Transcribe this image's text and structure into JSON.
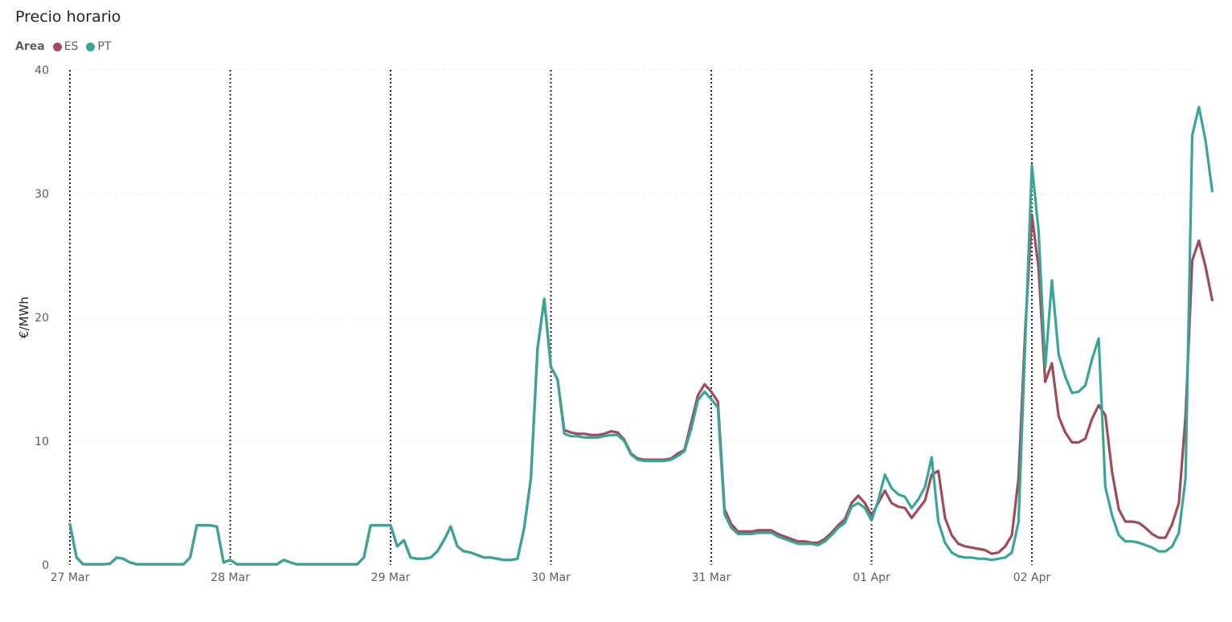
{
  "chart_data": {
    "type": "line",
    "title": "Precio horario",
    "legend_title": "Area",
    "legend_position": "top-left",
    "ylabel": "€/MWh",
    "xlabel": "",
    "ylim": [
      0,
      40
    ],
    "y_ticks": [
      "0",
      "10",
      "20",
      "30",
      "40"
    ],
    "x_ticks": [
      "27 Mar",
      "28 Mar",
      "29 Mar",
      "30 Mar",
      "31 Mar",
      "01 Apr",
      "02 Apr"
    ],
    "x_unit": "hour index from 27 Mar 00:00",
    "grid": true,
    "series": [
      {
        "name": "ES",
        "color": "#a04a5a",
        "values": [
          3.3,
          0.6,
          0.05,
          0.05,
          0.05,
          0.05,
          0.1,
          0.6,
          0.5,
          0.2,
          0.05,
          0.05,
          0.05,
          0.05,
          0.05,
          0.05,
          0.05,
          0.05,
          0.6,
          3.2,
          3.2,
          3.2,
          3.1,
          0.2,
          0.4,
          0.05,
          0.05,
          0.05,
          0.05,
          0.05,
          0.05,
          0.05,
          0.4,
          0.2,
          0.05,
          0.05,
          0.05,
          0.05,
          0.05,
          0.05,
          0.05,
          0.05,
          0.05,
          0.05,
          0.6,
          3.2,
          3.2,
          3.2,
          3.2,
          1.5,
          2.0,
          0.6,
          0.5,
          0.5,
          0.6,
          1.1,
          2.0,
          3.1,
          1.5,
          1.1,
          1.0,
          0.8,
          0.6,
          0.6,
          0.5,
          0.4,
          0.4,
          0.5,
          3.0,
          7.0,
          17.5,
          21.5,
          16.0,
          15.0,
          10.9,
          10.7,
          10.6,
          10.6,
          10.5,
          10.5,
          10.6,
          10.8,
          10.7,
          10.1,
          9.0,
          8.6,
          8.5,
          8.5,
          8.5,
          8.5,
          8.6,
          9.0,
          9.3,
          11.5,
          13.7,
          14.6,
          14.0,
          13.2,
          4.5,
          3.3,
          2.7,
          2.7,
          2.7,
          2.8,
          2.8,
          2.8,
          2.5,
          2.3,
          2.1,
          1.9,
          1.9,
          1.8,
          1.8,
          2.1,
          2.6,
          3.2,
          3.7,
          5.0,
          5.6,
          5.0,
          4.0,
          5.0,
          6.0,
          5.0,
          4.7,
          4.6,
          3.8,
          4.5,
          5.2,
          7.3,
          7.6,
          3.8,
          2.4,
          1.7,
          1.5,
          1.4,
          1.3,
          1.2,
          0.9,
          1.0,
          1.5,
          2.4,
          7.0,
          19.0,
          28.3,
          24.0,
          14.8,
          16.3,
          12.0,
          10.7,
          9.9,
          9.9,
          10.2,
          11.8,
          12.9,
          12.1,
          7.5,
          4.5,
          3.5,
          3.5,
          3.4,
          3.0,
          2.5,
          2.2,
          2.2,
          3.3,
          5.0,
          12.0,
          24.6,
          26.2,
          24.1,
          21.4
        ]
      },
      {
        "name": "PT",
        "color": "#3aa597",
        "values": [
          3.3,
          0.6,
          0.05,
          0.05,
          0.05,
          0.05,
          0.1,
          0.6,
          0.5,
          0.2,
          0.05,
          0.05,
          0.05,
          0.05,
          0.05,
          0.05,
          0.05,
          0.05,
          0.6,
          3.2,
          3.2,
          3.2,
          3.1,
          0.2,
          0.4,
          0.05,
          0.05,
          0.05,
          0.05,
          0.05,
          0.05,
          0.05,
          0.4,
          0.2,
          0.05,
          0.05,
          0.05,
          0.05,
          0.05,
          0.05,
          0.05,
          0.05,
          0.05,
          0.05,
          0.6,
          3.2,
          3.2,
          3.2,
          3.2,
          1.5,
          2.0,
          0.6,
          0.5,
          0.5,
          0.6,
          1.1,
          2.0,
          3.1,
          1.5,
          1.1,
          1.0,
          0.8,
          0.6,
          0.6,
          0.5,
          0.4,
          0.4,
          0.5,
          3.0,
          7.0,
          17.5,
          21.5,
          16.0,
          15.0,
          10.6,
          10.4,
          10.4,
          10.3,
          10.3,
          10.3,
          10.4,
          10.5,
          10.5,
          10.0,
          8.9,
          8.5,
          8.4,
          8.4,
          8.4,
          8.4,
          8.5,
          8.8,
          9.2,
          11.0,
          13.3,
          14.0,
          13.4,
          12.7,
          4.1,
          3.0,
          2.5,
          2.5,
          2.5,
          2.6,
          2.6,
          2.6,
          2.3,
          2.1,
          1.9,
          1.7,
          1.7,
          1.7,
          1.6,
          1.9,
          2.4,
          3.0,
          3.4,
          4.7,
          5.0,
          4.6,
          3.6,
          5.2,
          7.3,
          6.2,
          5.7,
          5.5,
          4.6,
          5.3,
          6.3,
          8.7,
          3.5,
          1.8,
          1.0,
          0.7,
          0.6,
          0.6,
          0.5,
          0.5,
          0.4,
          0.5,
          0.6,
          1.0,
          3.5,
          18.0,
          32.3,
          27.0,
          16.0,
          23.0,
          17.0,
          15.2,
          13.9,
          14.0,
          14.5,
          16.6,
          18.3,
          6.3,
          4.0,
          2.4,
          1.9,
          1.9,
          1.8,
          1.6,
          1.4,
          1.1,
          1.1,
          1.5,
          2.6,
          7.0,
          34.7,
          37.0,
          34.3,
          30.2
        ]
      }
    ]
  }
}
